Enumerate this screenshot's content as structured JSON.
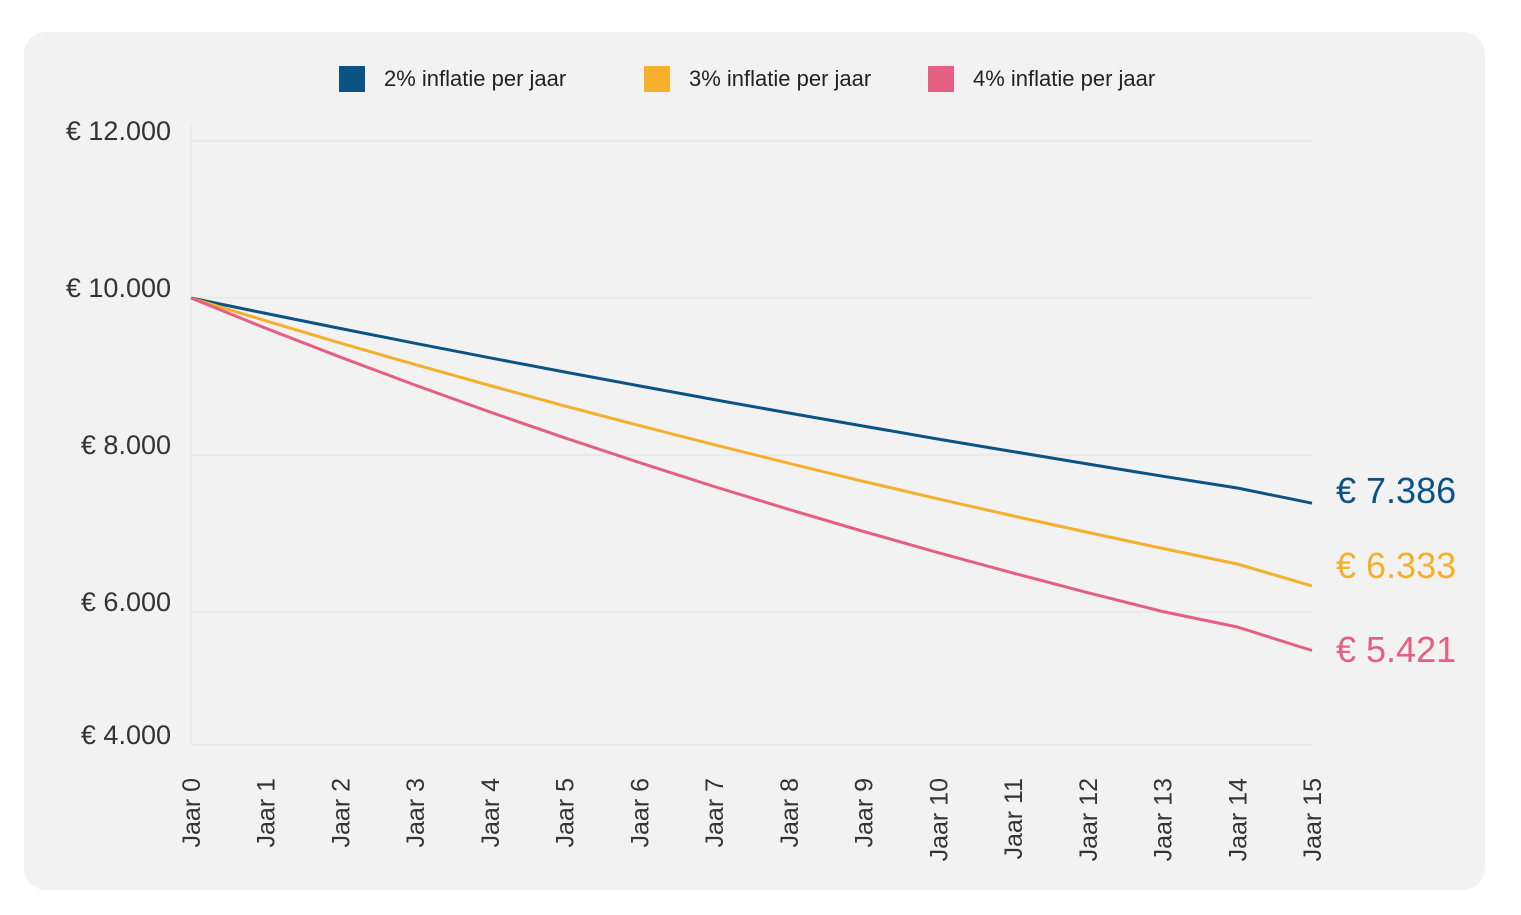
{
  "chart_data": {
    "type": "line",
    "x": [
      "Jaar 0",
      "Jaar 1",
      "Jaar 2",
      "Jaar 3",
      "Jaar 4",
      "Jaar 5",
      "Jaar 6",
      "Jaar 7",
      "Jaar 8",
      "Jaar 9",
      "Jaar 10",
      "Jaar 11",
      "Jaar 12",
      "Jaar 13",
      "Jaar 14",
      "Jaar 15"
    ],
    "yticks": [
      {
        "value": 12000,
        "label": "€ 12.000"
      },
      {
        "value": 10000,
        "label": "€ 10.000"
      },
      {
        "value": 8000,
        "label": "€ 8.000"
      },
      {
        "value": 6000,
        "label": "€ 6.000"
      },
      {
        "value": 4000,
        "label": "€ 4.000"
      }
    ],
    "ylim": [
      4000,
      12000
    ],
    "grid": true,
    "legend_position": "top-center",
    "series": [
      {
        "name": "2% inflatie per jaar",
        "color": "#0b5384",
        "values": [
          10000,
          9804,
          9612,
          9423,
          9238,
          9057,
          8880,
          8706,
          8535,
          8368,
          8203,
          8043,
          7885,
          7730,
          7579,
          7386
        ],
        "end_label": "€ 7.386"
      },
      {
        "name": "3% inflatie per jaar",
        "color": "#f4b02a",
        "values": [
          10000,
          9709,
          9426,
          9151,
          8885,
          8626,
          8375,
          8131,
          7894,
          7664,
          7441,
          7224,
          7014,
          6810,
          6611,
          6333
        ],
        "end_label": "€ 6.333"
      },
      {
        "name": "4% inflatie per jaar",
        "color": "#e45f82",
        "values": [
          10000,
          9615,
          9246,
          8890,
          8548,
          8219,
          7903,
          7599,
          7307,
          7026,
          6756,
          6496,
          6246,
          6006,
          5775,
          5421
        ],
        "end_label": "€ 5.421"
      }
    ]
  }
}
